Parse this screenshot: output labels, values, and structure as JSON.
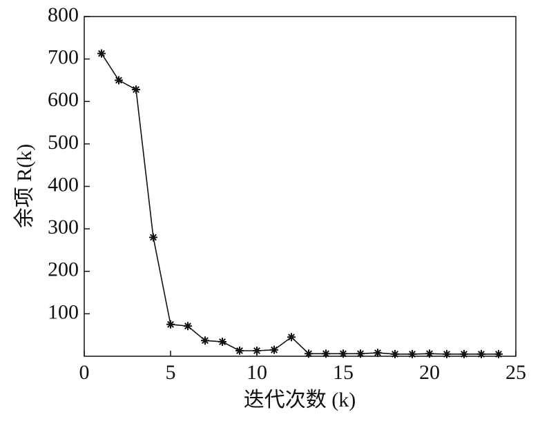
{
  "chart_data": {
    "type": "line",
    "xlabel": "迭代次数 (k)",
    "ylabel": "余项 R(k)",
    "x": [
      1,
      2,
      3,
      4,
      5,
      6,
      7,
      8,
      9,
      10,
      11,
      12,
      13,
      14,
      15,
      16,
      17,
      18,
      19,
      20,
      21,
      22,
      23,
      24
    ],
    "series": [
      {
        "color": "#111111",
        "marker": "asterisk",
        "values": [
          713,
          650,
          628,
          280,
          75,
          71,
          37,
          34,
          13,
          13,
          15,
          45,
          6,
          6,
          6,
          6,
          8,
          5,
          5,
          6,
          5,
          5,
          5,
          5
        ]
      }
    ],
    "xlim": [
      0,
      25
    ],
    "xticks": [
      0,
      5,
      10,
      15,
      20,
      25
    ],
    "ylim": [
      0,
      800
    ],
    "yticks": [
      100,
      200,
      300,
      400,
      500,
      600,
      700,
      800
    ]
  }
}
